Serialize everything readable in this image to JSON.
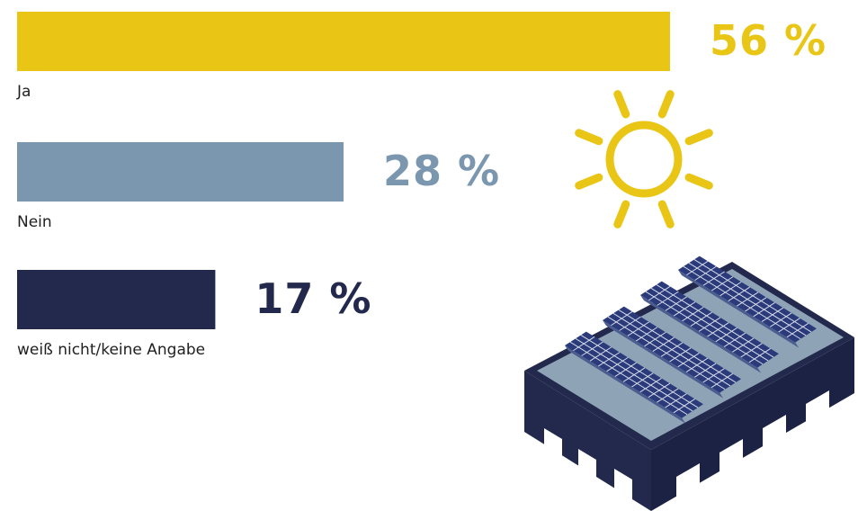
{
  "chart_data": {
    "type": "bar",
    "orientation": "horizontal",
    "categories": [
      "Ja",
      "Nein",
      "weiß nicht/keine Angabe"
    ],
    "values": [
      56,
      28,
      17
    ],
    "value_labels": [
      "56 %",
      "28 %",
      "17 %"
    ],
    "colors": [
      "#e9c515",
      "#7b97b0",
      "#22294c"
    ],
    "unit": "%",
    "title": "",
    "xlabel": "",
    "ylabel": "",
    "grid": false
  },
  "illustration": {
    "sun_icon": "sun-icon",
    "building_icon": "solar-roof-building-icon",
    "sun_color": "#e9c515",
    "building_wall_color": "#22294c",
    "roof_color": "#8fa3b6",
    "panel_color": "#2b3a7a"
  }
}
